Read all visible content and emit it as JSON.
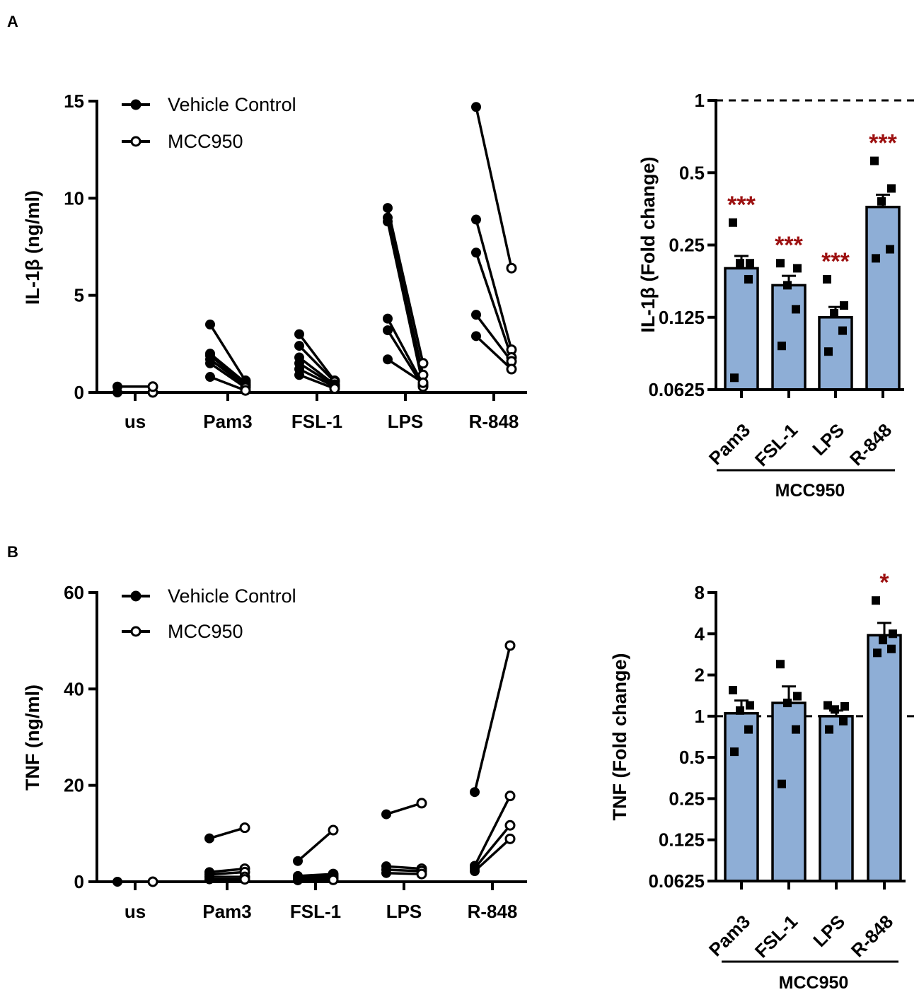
{
  "panels": [
    {
      "letter": "A"
    },
    {
      "letter": "B"
    }
  ],
  "colors": {
    "bar_fill": "#8eaed6",
    "stat_text": "#9c1010",
    "line": "#000000"
  },
  "chart_data": [
    {
      "type": "line",
      "id": "A-left",
      "title": "",
      "xlabel": "",
      "ylabel": "IL-1β (ng/ml)",
      "ylim": [
        0,
        15
      ],
      "yticks": [
        0,
        5,
        10,
        15
      ],
      "categories": [
        "us",
        "Pam3",
        "FSL-1",
        "LPS",
        "R-848"
      ],
      "legend": {
        "position": "top-left",
        "entries": [
          {
            "label": "Vehicle Control",
            "marker": "filled-circle"
          },
          {
            "label": "MCC950",
            "marker": "open-circle"
          }
        ]
      },
      "pairs": [
        {
          "category": "us",
          "vehicle": [
            0.0,
            0.3
          ],
          "mcc950": [
            0.0,
            0.3
          ]
        },
        {
          "category": "Pam3",
          "vehicle": [
            3.5,
            2.0,
            1.9,
            1.7,
            1.5,
            0.8
          ],
          "mcc950": [
            0.6,
            0.5,
            0.4,
            0.35,
            0.25,
            0.1
          ]
        },
        {
          "category": "FSL-1",
          "vehicle": [
            3.0,
            2.4,
            1.8,
            1.5,
            1.2,
            0.9
          ],
          "mcc950": [
            0.6,
            0.55,
            0.4,
            0.35,
            0.3,
            0.2
          ]
        },
        {
          "category": "LPS",
          "vehicle": [
            9.5,
            9.0,
            8.8,
            3.8,
            3.2,
            1.7
          ],
          "mcc950": [
            1.5,
            0.9,
            0.35,
            0.4,
            0.3,
            0.5
          ]
        },
        {
          "category": "R-848",
          "vehicle": [
            14.7,
            8.9,
            7.2,
            4.0,
            2.9
          ],
          "mcc950": [
            6.4,
            2.2,
            1.8,
            1.6,
            1.2
          ]
        }
      ]
    },
    {
      "type": "bar",
      "id": "A-right",
      "title": "",
      "xlabel": "MCC950",
      "ylabel": "IL-1β (Fold change)",
      "yscale": "log2",
      "ylim": [
        0.0625,
        1
      ],
      "yticks": [
        0.0625,
        0.125,
        0.25,
        0.5,
        1
      ],
      "ytick_labels": [
        "0.0625",
        "0.125",
        "0.25",
        "0.5",
        "1"
      ],
      "reference_line": 1,
      "categories": [
        "Pam3",
        "FSL-1",
        "LPS",
        "R-848"
      ],
      "values": [
        0.2,
        0.17,
        0.125,
        0.36
      ],
      "error": [
        0.225,
        0.186,
        0.138,
        0.405
      ],
      "points": [
        [
          0.31,
          0.21,
          0.21,
          0.18,
          0.07
        ],
        [
          0.21,
          0.2,
          0.17,
          0.135,
          0.095
        ],
        [
          0.18,
          0.14,
          0.13,
          0.11,
          0.09
        ],
        [
          0.56,
          0.43,
          0.38,
          0.24,
          0.22
        ]
      ],
      "significance": [
        "***",
        "***",
        "***",
        "***"
      ]
    },
    {
      "type": "line",
      "id": "B-left",
      "title": "",
      "xlabel": "",
      "ylabel": "TNF (ng/ml)",
      "ylim": [
        0,
        60
      ],
      "yticks": [
        0,
        20,
        40,
        60
      ],
      "categories": [
        "us",
        "Pam3",
        "FSL-1",
        "LPS",
        "R-848"
      ],
      "legend": {
        "position": "top-left",
        "entries": [
          {
            "label": "Vehicle Control",
            "marker": "filled-circle"
          },
          {
            "label": "MCC950",
            "marker": "open-circle"
          }
        ]
      },
      "pairs": [
        {
          "category": "us",
          "vehicle": [
            0.0
          ],
          "mcc950": [
            0.0
          ]
        },
        {
          "category": "Pam3",
          "vehicle": [
            9.0,
            2.0,
            1.5,
            1.0,
            0.5
          ],
          "mcc950": [
            11.2,
            2.7,
            2.0,
            1.0,
            0.5
          ]
        },
        {
          "category": "FSL-1",
          "vehicle": [
            4.3,
            1.2,
            0.9,
            0.5,
            0.3
          ],
          "mcc950": [
            10.7,
            1.6,
            1.2,
            0.8,
            0.4
          ]
        },
        {
          "category": "LPS",
          "vehicle": [
            14.0,
            3.2,
            2.5,
            1.8
          ],
          "mcc950": [
            16.3,
            2.7,
            2.2,
            1.6
          ]
        },
        {
          "category": "R-848",
          "vehicle": [
            18.6,
            3.3,
            2.8,
            2.2
          ],
          "mcc950": [
            49.0,
            17.8,
            11.7,
            8.9
          ]
        }
      ]
    },
    {
      "type": "bar",
      "id": "B-right",
      "title": "",
      "xlabel": "MCC950",
      "ylabel": "TNF (Fold change)",
      "yscale": "log2",
      "ylim": [
        0.0625,
        8
      ],
      "yticks": [
        0.0625,
        0.125,
        0.25,
        0.5,
        1,
        2,
        4,
        8
      ],
      "ytick_labels": [
        "0.0625",
        "0.125",
        "0.25",
        "0.5",
        "1",
        "2",
        "4",
        "8"
      ],
      "reference_line": 1,
      "categories": [
        "Pam3",
        "FSL-1",
        "LPS",
        "R-848"
      ],
      "values": [
        1.05,
        1.25,
        1.0,
        3.9
      ],
      "error": [
        1.3,
        1.65,
        1.1,
        4.8
      ],
      "points": [
        [
          1.55,
          1.2,
          1.1,
          0.8,
          0.55
        ],
        [
          2.4,
          1.4,
          1.25,
          0.8,
          0.32
        ],
        [
          1.2,
          1.18,
          1.12,
          0.92,
          0.8
        ],
        [
          7.0,
          4.0,
          3.6,
          3.1,
          2.9
        ]
      ],
      "significance": [
        "",
        "",
        "",
        "*"
      ]
    }
  ]
}
